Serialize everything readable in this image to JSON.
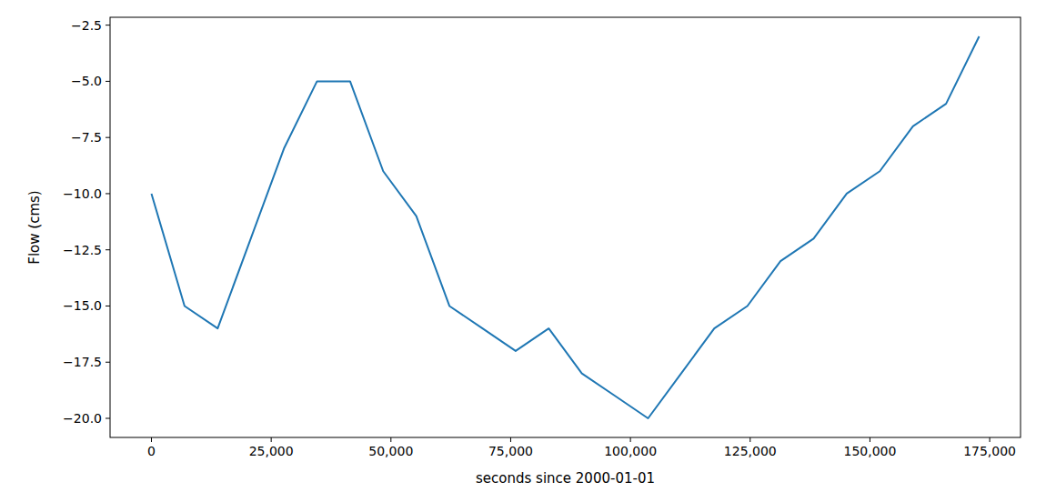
{
  "chart_data": {
    "type": "line",
    "x_label": "seconds since 2000-01-01",
    "y_label": "Flow (cms)",
    "x": [
      0,
      6912,
      13824,
      20736,
      27648,
      34560,
      41472,
      48384,
      55296,
      62208,
      69120,
      76032,
      82944,
      89856,
      96768,
      103680,
      110592,
      117504,
      124416,
      131328,
      138240,
      145152,
      152064,
      158976,
      165888,
      172800
    ],
    "series": [
      {
        "color": "#1f77b4",
        "values": [
          -10,
          -15,
          -16,
          -12,
          -8,
          -5,
          -5,
          -9,
          -11,
          -15,
          -16,
          -17,
          -16,
          -18,
          -19,
          -20,
          -18,
          -16,
          -15,
          -13,
          -12,
          -10,
          -9,
          -7,
          -6,
          -3
        ]
      }
    ],
    "xlim": [
      -8640,
      181440
    ],
    "ylim": [
      -20.85,
      -2.15
    ],
    "xticks": [
      0,
      {
        "value": 25000,
        "label": "25,000"
      },
      {
        "value": 50000,
        "label": "50,000"
      },
      {
        "value": 75000,
        "label": "75,000"
      },
      {
        "value": 100000,
        "label": "100,000"
      },
      {
        "value": 125000,
        "label": "125,000"
      },
      {
        "value": 150000,
        "label": "150,000"
      },
      {
        "value": 175000,
        "label": "175,000"
      }
    ],
    "yticks": [
      {
        "value": -20,
        "label": "−20.0"
      },
      {
        "value": -17.5,
        "label": "−17.5"
      },
      {
        "value": -15,
        "label": "−15.0"
      },
      {
        "value": -12.5,
        "label": "−12.5"
      },
      {
        "value": -10,
        "label": "−10.0"
      },
      {
        "value": -7.5,
        "label": "−7.5"
      },
      {
        "value": -5,
        "label": "−5.0"
      },
      {
        "value": -2.5,
        "label": "−2.5"
      }
    ],
    "grid": false
  }
}
